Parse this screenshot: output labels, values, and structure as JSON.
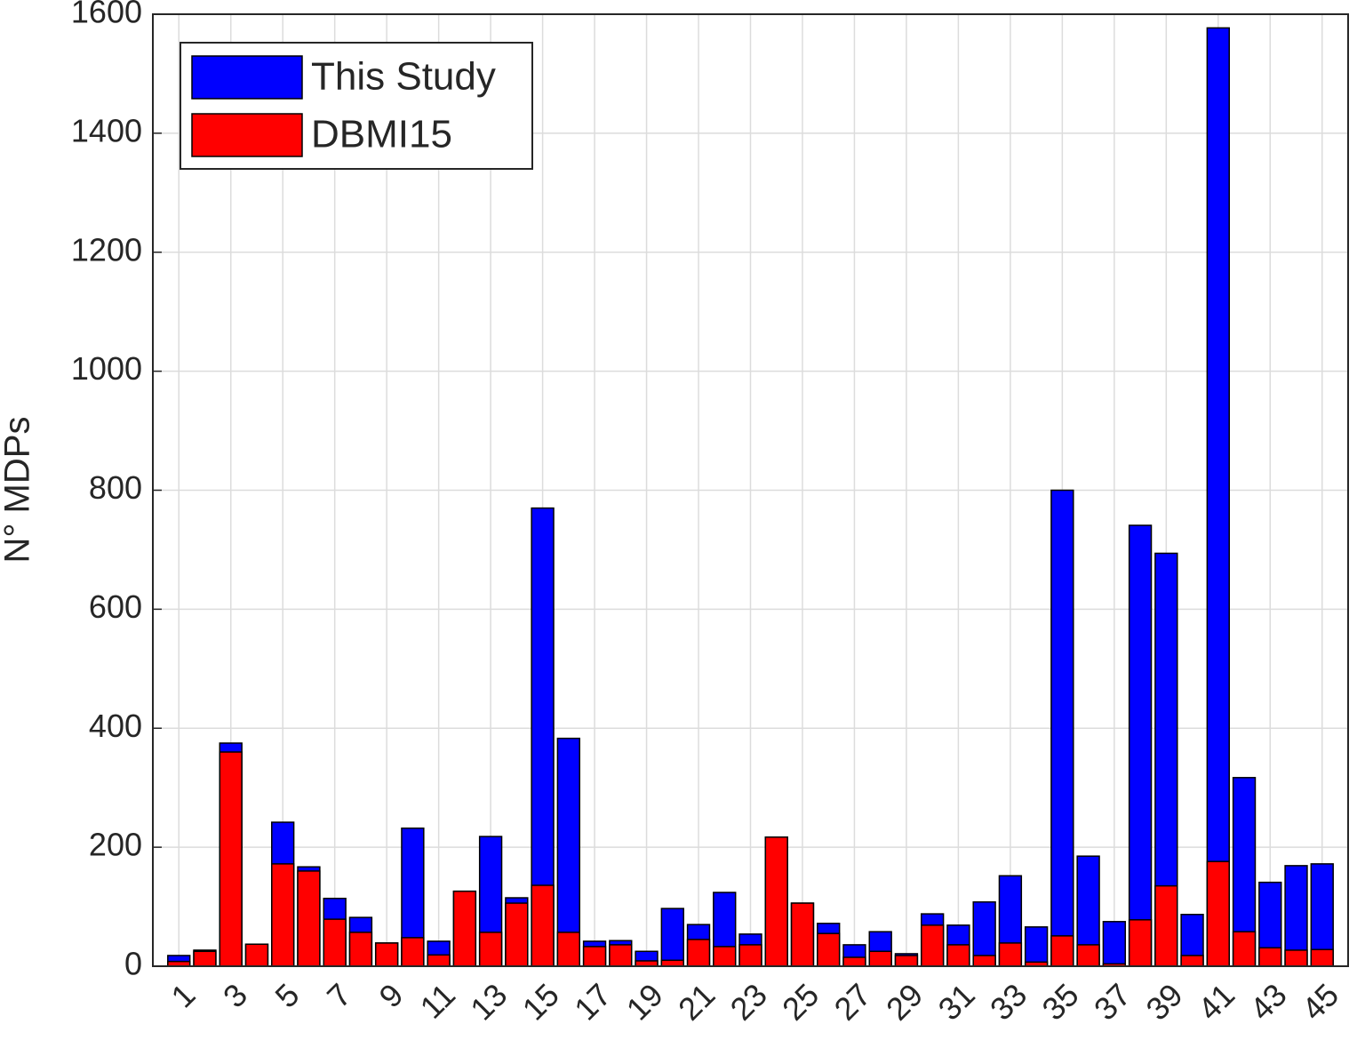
{
  "chart_data": {
    "type": "bar",
    "overlap": true,
    "y_label": "N° MDPs",
    "categories": [
      "1",
      null,
      "3",
      null,
      "5",
      null,
      "7",
      null,
      "9",
      null,
      "11",
      null,
      "13",
      null,
      "15",
      null,
      "17",
      null,
      "19",
      null,
      "21",
      null,
      "23",
      null,
      "25",
      null,
      "27",
      null,
      "29",
      null,
      "31",
      null,
      "33",
      null,
      "35",
      null,
      "37",
      null,
      "39",
      null,
      "41",
      null,
      "43",
      null,
      "45"
    ],
    "series": [
      {
        "name": "This Study",
        "color": "#0000ff",
        "values": [
          18,
          27,
          375,
          37,
          242,
          167,
          114,
          82,
          39,
          232,
          42,
          126,
          218,
          115,
          770,
          383,
          42,
          43,
          25,
          97,
          70,
          124,
          54,
          217,
          106,
          72,
          36,
          58,
          21,
          88,
          69,
          108,
          152,
          66,
          800,
          185,
          75,
          741,
          694,
          87,
          1577,
          317,
          141,
          169,
          172
        ]
      },
      {
        "name": "DBMI15",
        "color": "#ff0000",
        "values": [
          8,
          25,
          360,
          37,
          172,
          160,
          79,
          57,
          39,
          48,
          19,
          126,
          57,
          106,
          136,
          57,
          33,
          36,
          9,
          10,
          45,
          33,
          36,
          217,
          106,
          55,
          15,
          25,
          18,
          69,
          36,
          18,
          39,
          7,
          51,
          36,
          4,
          78,
          135,
          18,
          176,
          58,
          31,
          27,
          28
        ]
      }
    ],
    "ylim": [
      0,
      1600
    ],
    "yticks": [
      0,
      200,
      400,
      600,
      800,
      1000,
      1200,
      1400,
      1600
    ],
    "grid": true,
    "legend": "upper-left"
  }
}
